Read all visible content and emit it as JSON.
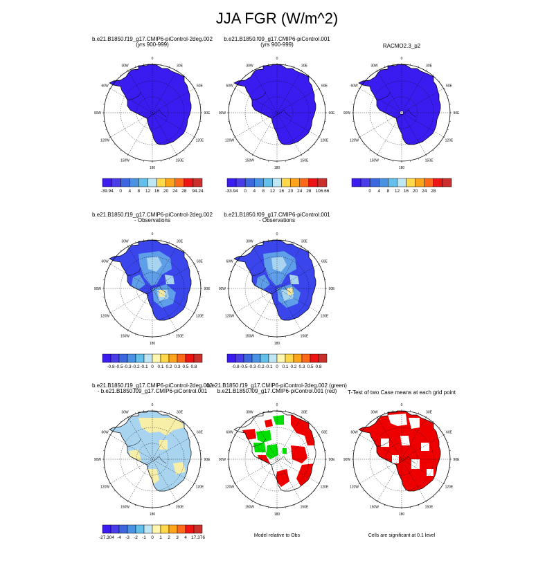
{
  "title": "JJA FGR (W/m^2)",
  "lon_labels": [
    "0",
    "30E",
    "60E",
    "90E",
    "120E",
    "150E",
    "180",
    "150W",
    "120W",
    "90W",
    "60W",
    "30W"
  ],
  "colors": {
    "abs": [
      "#3b1cf0",
      "#4a3ce6",
      "#3c67de",
      "#4a92e4",
      "#62c0ea",
      "#bfe6f5",
      "#ffd94a",
      "#ffa51c",
      "#ff6a1a",
      "#ee1414",
      "#c9302b"
    ],
    "diff": [
      "#3b1cf0",
      "#4a3ce6",
      "#3c67de",
      "#4a92e4",
      "#62c0ea",
      "#bfe6f5",
      "#fff7b0",
      "#ffd94a",
      "#ffa51c",
      "#ff6a1a",
      "#ee1414",
      "#c9302b"
    ],
    "obs_blue": "#3a46ec",
    "obs_light": "#5f9ee8",
    "obs_pale": "#a9d4f0",
    "obs_yellow": "#f5e8a0",
    "case_light": "#a9d4f0",
    "case_yellow": "#f7eea8",
    "green": "#00e000",
    "red": "#ee0000"
  },
  "panels": [
    {
      "title1": "b.e21.B1850.f19_g17.CMIP6-piControl-2deg.002",
      "title2": "(yrs 900-999)",
      "fill": "abs",
      "colorbar": {
        "type": "abs",
        "labels": [
          "-39.94",
          "0",
          "4",
          "8",
          "12",
          "16",
          "20",
          "24",
          "28",
          "94.24"
        ]
      }
    },
    {
      "title1": "b.e21.B1850.f09_g17.CMIP6-piControl.001",
      "title2": "(yrs 900-999)",
      "fill": "abs",
      "colorbar": {
        "type": "abs",
        "labels": [
          "-33.94",
          "0",
          "4",
          "8",
          "12",
          "16",
          "20",
          "24",
          "28",
          "106.66"
        ]
      }
    },
    {
      "title1": "RACMO2.3_p2",
      "title2": "",
      "fill": "abs",
      "colorbar": {
        "type": "abs",
        "labels": [
          "",
          "0",
          "4",
          "8",
          "12",
          "16",
          "20",
          "24",
          "28",
          ""
        ]
      }
    },
    {
      "title1": "b.e21.B1850.f19_g17.CMIP6-piControl-2deg.002",
      "title2": "- Observations",
      "fill": "obsdiff",
      "colorbar": {
        "type": "diff",
        "labels": [
          "",
          "-0.8",
          "-0.5",
          "-0.3",
          "-0.2",
          "-0.1",
          "0",
          "0.1",
          "0.2",
          "0.3",
          "0.5",
          "0.8",
          ""
        ]
      }
    },
    {
      "title1": "b.e21.B1850.f09_g17.CMIP6-piControl.001",
      "title2": "- Observations",
      "fill": "obsdiff",
      "colorbar": {
        "type": "diff",
        "labels": [
          "",
          "-0.8",
          "-0.5",
          "-0.3",
          "-0.2",
          "-0.1",
          "0",
          "0.1",
          "0.2",
          "0.3",
          "0.5",
          "0.8",
          ""
        ]
      }
    },
    {
      "title1": "b.e21.B1850.f19_g17.CMIP6-piControl-2deg.002",
      "title2": "- b.e21.B1850.f09_g17.CMIP6-piControl.001",
      "fill": "casediff",
      "colorbar": {
        "type": "diff",
        "labels": [
          "-27.304",
          "-4",
          "-3",
          "-2",
          "-1",
          "0",
          "1",
          "2",
          "3",
          "4",
          "17.376"
        ]
      }
    },
    {
      "title1": "b.e21.B1850.f19_g17.CMIP6-piControl-2deg.002 (green)",
      "title2": "b.e21.B1850.f09_g17.CMIP6-piControl.001 (red)",
      "fill": "greenred",
      "caption": "Model relative to Obs"
    },
    {
      "title1": "T-Test of two Case means at each grid point",
      "title2": "",
      "fill": "ttest",
      "caption": "Cells are significant at 0.1 level"
    }
  ]
}
